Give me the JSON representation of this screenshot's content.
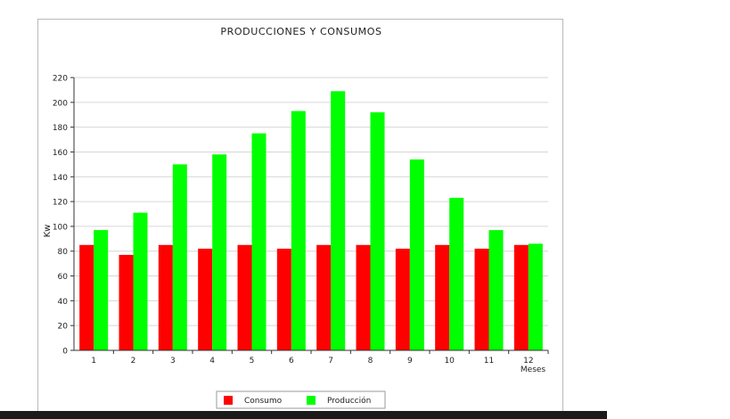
{
  "chart_data": {
    "type": "bar",
    "title": "PRODUCCIONES Y CONSUMOS",
    "xlabel": "Meses",
    "ylabel": "Kw",
    "ylim": [
      0,
      220
    ],
    "yticks": [
      0,
      20,
      40,
      60,
      80,
      100,
      120,
      140,
      160,
      180,
      200,
      220
    ],
    "grid": true,
    "legend_position": "bottom",
    "categories": [
      "1",
      "2",
      "3",
      "4",
      "5",
      "6",
      "7",
      "8",
      "9",
      "10",
      "11",
      "12"
    ],
    "series": [
      {
        "name": "Consumo",
        "color": "#ff0000",
        "values": [
          85,
          77,
          85,
          82,
          85,
          82,
          85,
          85,
          82,
          85,
          82,
          85
        ]
      },
      {
        "name": "Producción",
        "color": "#00ff00",
        "values": [
          97,
          111,
          150,
          158,
          175,
          193,
          209,
          192,
          154,
          123,
          97,
          86
        ]
      }
    ]
  }
}
